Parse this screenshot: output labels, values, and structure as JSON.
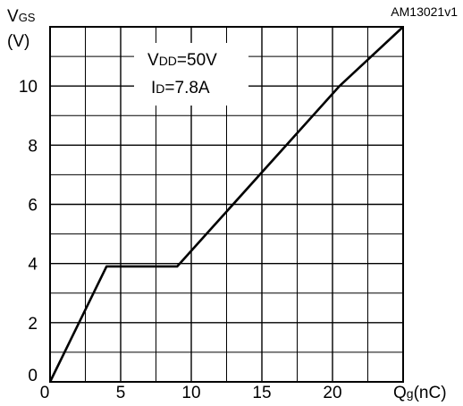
{
  "chart_data": {
    "type": "line",
    "figure_id": "AM13021v1",
    "ylabel_main": "V",
    "ylabel_sub": "GS",
    "ylabel_unit": "(V)",
    "xlabel_main": "Q",
    "xlabel_sub": "g",
    "xlabel_unit": "(nC)",
    "annotation": {
      "line1_main": "V",
      "line1_sub": "DD",
      "line1_value": "=50V",
      "line2_main": "I",
      "line2_sub": "D",
      "line2_value": "=7.8A"
    },
    "xlim": [
      0,
      25
    ],
    "ylim": [
      0,
      12
    ],
    "x_ticks": [
      0,
      5,
      10,
      15,
      20
    ],
    "y_ticks": [
      0,
      2,
      4,
      6,
      8,
      10
    ],
    "grid": true,
    "series": [
      {
        "x": [
          0,
          4,
          9,
          20.5,
          25
        ],
        "y": [
          0,
          3.9,
          3.9,
          10,
          12
        ]
      }
    ],
    "colors": {
      "line": "#000000",
      "grid": "#000000",
      "background": "#ffffff"
    }
  }
}
